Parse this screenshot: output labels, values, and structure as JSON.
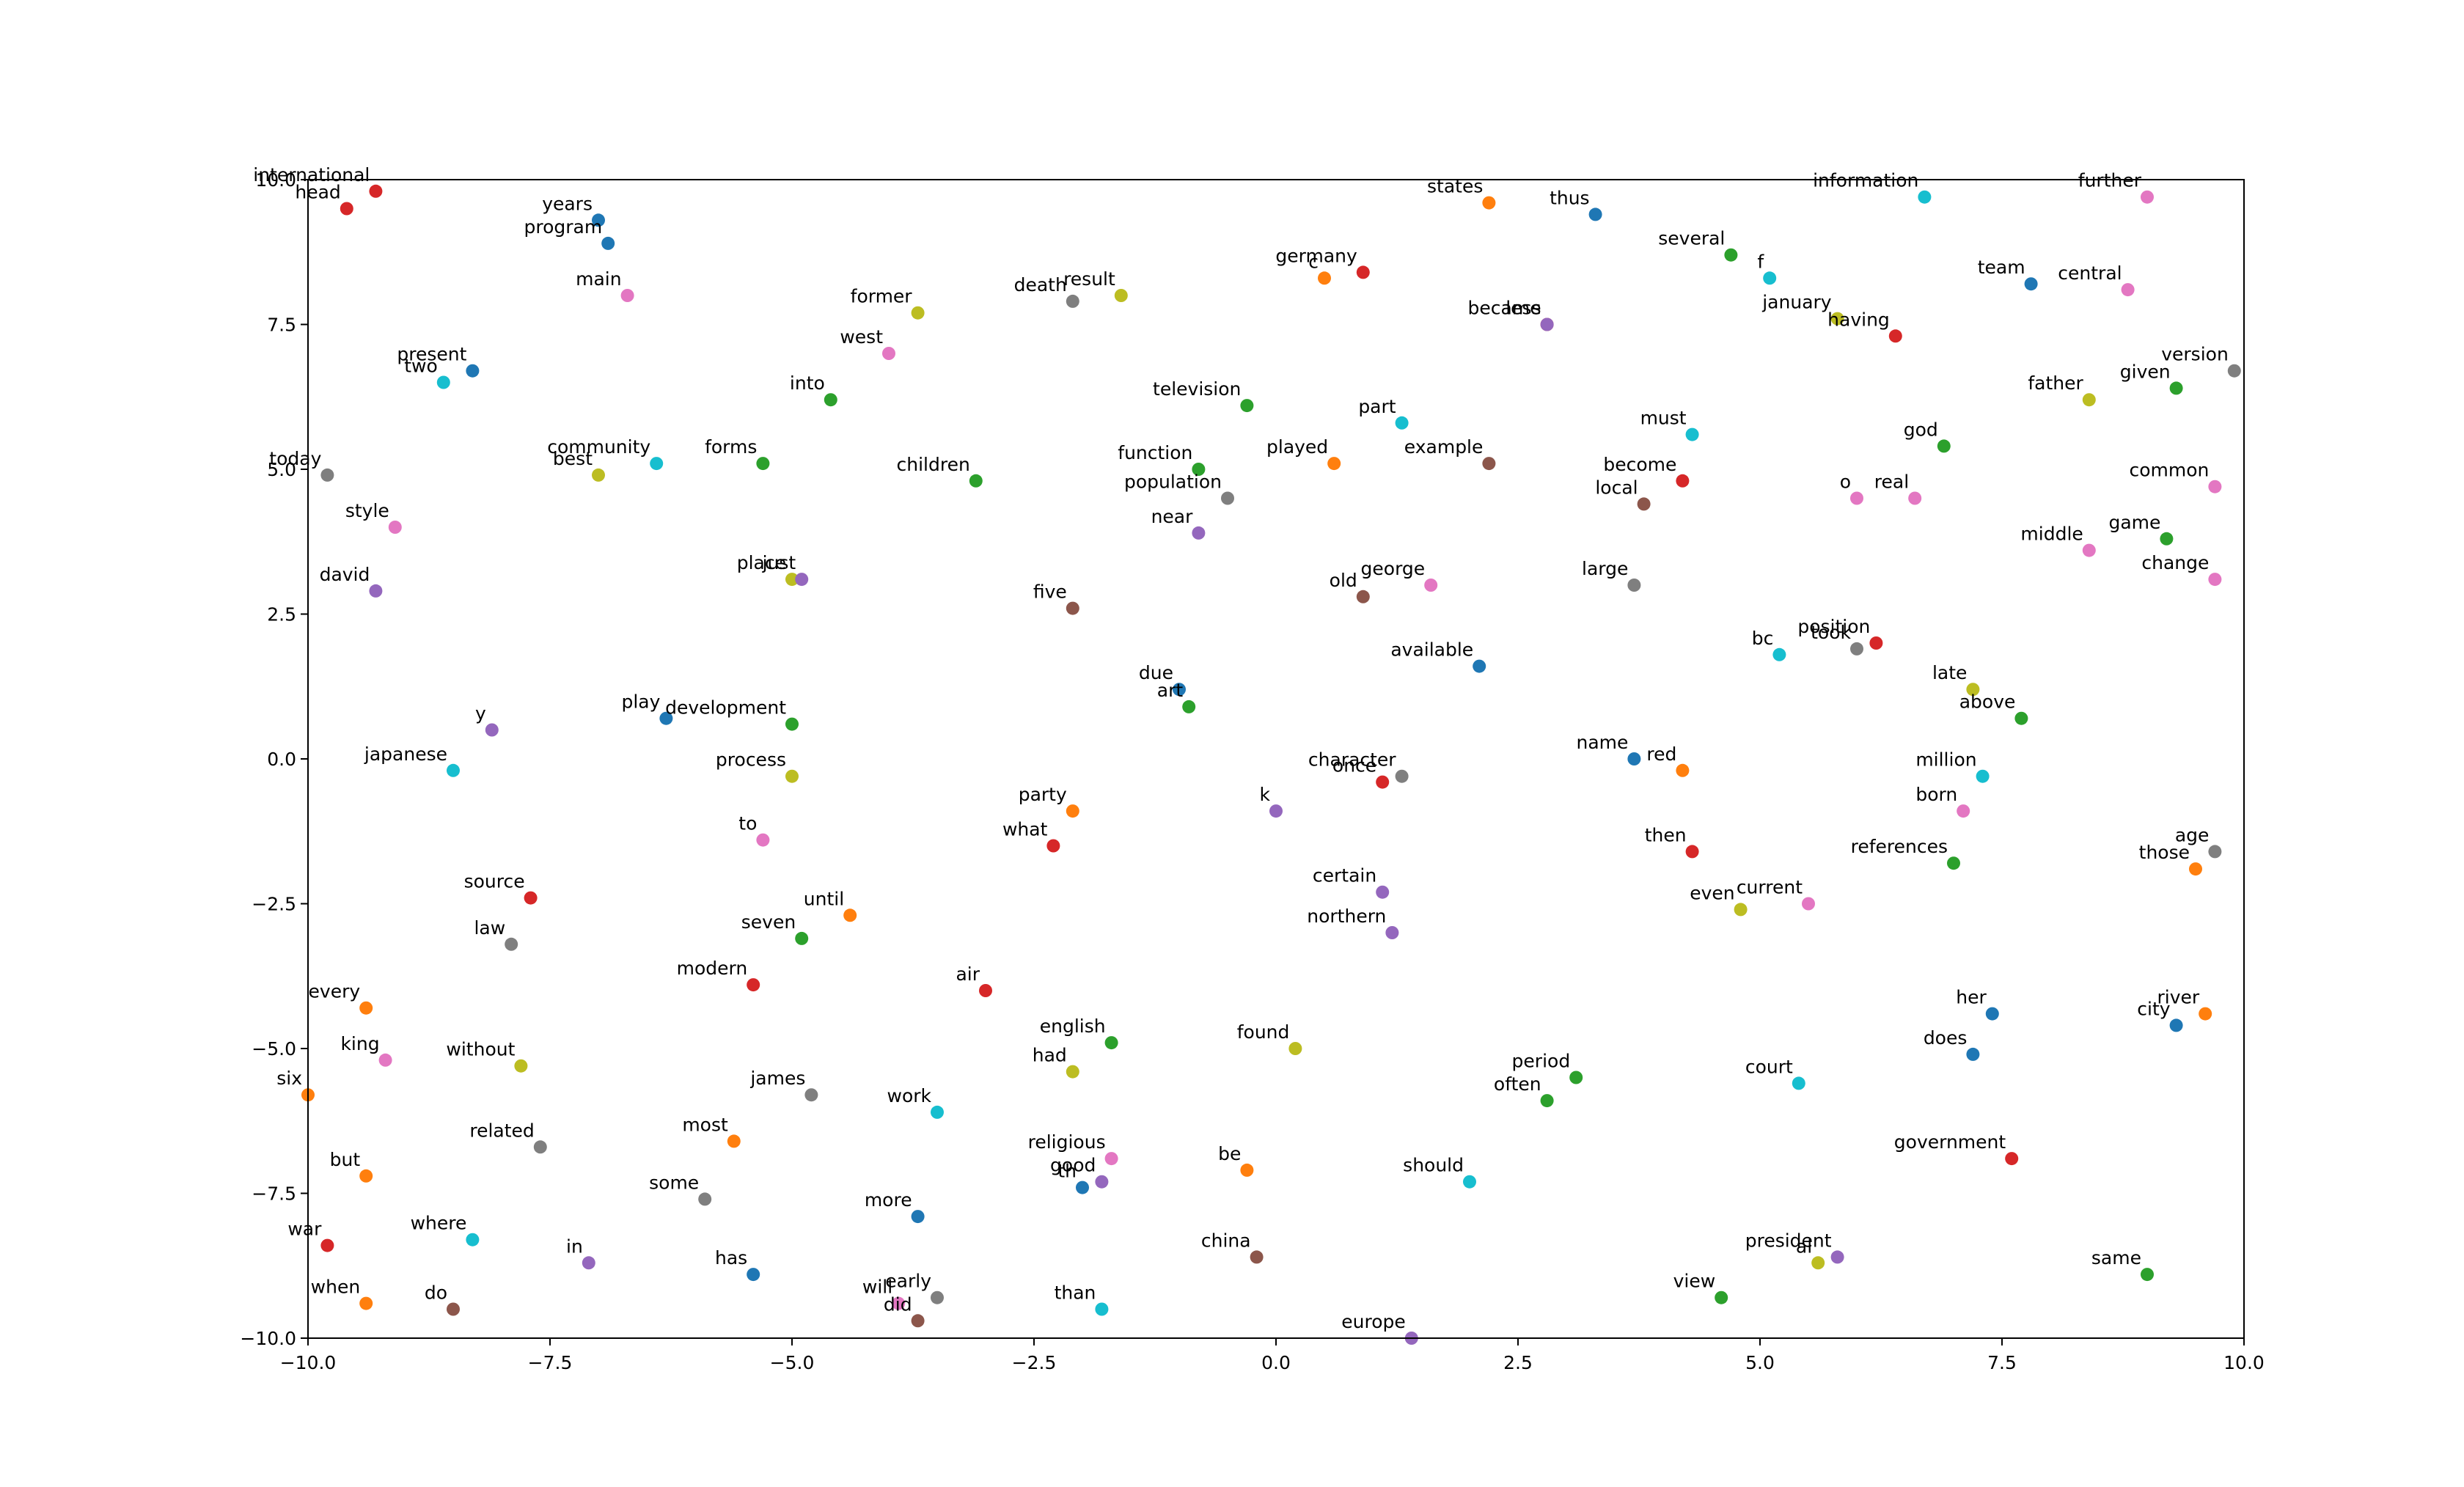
{
  "chart_data": {
    "type": "scatter",
    "title": "",
    "xlabel": "",
    "ylabel": "",
    "xlim": [
      -10,
      10
    ],
    "ylim": [
      -10,
      10
    ],
    "xticks": [
      "−10.0",
      "−7.5",
      "−5.0",
      "−2.5",
      "0.0",
      "2.5",
      "5.0",
      "7.5",
      "10.0"
    ],
    "yticks": [
      "−10.0",
      "−7.5",
      "−5.0",
      "−2.5",
      "0.0",
      "2.5",
      "5.0",
      "7.5",
      "10.0"
    ],
    "xtick_values": [
      -10,
      -7.5,
      -5,
      -2.5,
      0,
      2.5,
      5,
      7.5,
      10
    ],
    "ytick_values": [
      -10,
      -7.5,
      -5,
      -2.5,
      0,
      2.5,
      5,
      7.5,
      10
    ],
    "grid": false,
    "colors": [
      "#1f77b4",
      "#ff7f0e",
      "#2ca02c",
      "#d62728",
      "#9467bd",
      "#8c564b",
      "#e377c2",
      "#7f7f7f",
      "#bcbd22",
      "#17becf"
    ],
    "points": [
      {
        "label": "international",
        "x": -9.3,
        "y": 9.8,
        "c": 3
      },
      {
        "label": "head",
        "x": -9.6,
        "y": 9.5,
        "c": 3
      },
      {
        "label": "years",
        "x": -7.0,
        "y": 9.3,
        "c": 0
      },
      {
        "label": "program",
        "x": -6.9,
        "y": 8.9,
        "c": 0
      },
      {
        "label": "main",
        "x": -6.7,
        "y": 8.0,
        "c": 6
      },
      {
        "label": "present",
        "x": -8.3,
        "y": 6.7,
        "c": 0
      },
      {
        "label": "two",
        "x": -8.6,
        "y": 6.5,
        "c": 9
      },
      {
        "label": "today",
        "x": -9.8,
        "y": 4.9,
        "c": 7
      },
      {
        "label": "community",
        "x": -6.4,
        "y": 5.1,
        "c": 9
      },
      {
        "label": "best",
        "x": -7.0,
        "y": 4.9,
        "c": 8
      },
      {
        "label": "style",
        "x": -9.1,
        "y": 4.0,
        "c": 6
      },
      {
        "label": "forms",
        "x": -5.3,
        "y": 5.1,
        "c": 2
      },
      {
        "label": "into",
        "x": -4.6,
        "y": 6.2,
        "c": 2
      },
      {
        "label": "former",
        "x": -3.7,
        "y": 7.7,
        "c": 8
      },
      {
        "label": "west",
        "x": -4.0,
        "y": 7.0,
        "c": 6
      },
      {
        "label": "death",
        "x": -2.1,
        "y": 7.9,
        "c": 7
      },
      {
        "label": "result",
        "x": -1.6,
        "y": 8.0,
        "c": 8
      },
      {
        "label": "children",
        "x": -3.1,
        "y": 4.8,
        "c": 2
      },
      {
        "label": "david",
        "x": -9.3,
        "y": 2.9,
        "c": 4
      },
      {
        "label": "place",
        "x": -5.0,
        "y": 3.1,
        "c": 8
      },
      {
        "label": "just",
        "x": -4.9,
        "y": 3.1,
        "c": 4
      },
      {
        "label": "five",
        "x": -2.1,
        "y": 2.6,
        "c": 5
      },
      {
        "label": "y",
        "x": -8.1,
        "y": 0.5,
        "c": 4
      },
      {
        "label": "play",
        "x": -6.3,
        "y": 0.7,
        "c": 0
      },
      {
        "label": "development",
        "x": -5.0,
        "y": 0.6,
        "c": 2
      },
      {
        "label": "japanese",
        "x": -8.5,
        "y": -0.2,
        "c": 9
      },
      {
        "label": "process",
        "x": -5.0,
        "y": -0.3,
        "c": 8
      },
      {
        "label": "to",
        "x": -5.3,
        "y": -1.4,
        "c": 6
      },
      {
        "label": "party",
        "x": -2.1,
        "y": -0.9,
        "c": 1
      },
      {
        "label": "what",
        "x": -2.3,
        "y": -1.5,
        "c": 3
      },
      {
        "label": "source",
        "x": -7.7,
        "y": -2.4,
        "c": 3
      },
      {
        "label": "until",
        "x": -4.4,
        "y": -2.7,
        "c": 1
      },
      {
        "label": "seven",
        "x": -4.9,
        "y": -3.1,
        "c": 2
      },
      {
        "label": "law",
        "x": -7.9,
        "y": -3.2,
        "c": 7
      },
      {
        "label": "modern",
        "x": -5.4,
        "y": -3.9,
        "c": 3
      },
      {
        "label": "air",
        "x": -3.0,
        "y": -4.0,
        "c": 3
      },
      {
        "label": "every",
        "x": -9.4,
        "y": -4.3,
        "c": 1
      },
      {
        "label": "king",
        "x": -9.2,
        "y": -5.2,
        "c": 6
      },
      {
        "label": "without",
        "x": -7.8,
        "y": -5.3,
        "c": 8
      },
      {
        "label": "six",
        "x": -10.0,
        "y": -5.8,
        "c": 1
      },
      {
        "label": "james",
        "x": -4.8,
        "y": -5.8,
        "c": 7
      },
      {
        "label": "work",
        "x": -3.5,
        "y": -6.1,
        "c": 9
      },
      {
        "label": "english",
        "x": -1.7,
        "y": -4.9,
        "c": 2
      },
      {
        "label": "had",
        "x": -2.1,
        "y": -5.4,
        "c": 8
      },
      {
        "label": "related",
        "x": -7.6,
        "y": -6.7,
        "c": 7
      },
      {
        "label": "most",
        "x": -5.6,
        "y": -6.6,
        "c": 1
      },
      {
        "label": "but",
        "x": -9.4,
        "y": -7.2,
        "c": 1
      },
      {
        "label": "some",
        "x": -5.9,
        "y": -7.6,
        "c": 7
      },
      {
        "label": "religious",
        "x": -1.7,
        "y": -6.9,
        "c": 6
      },
      {
        "label": "good",
        "x": -1.8,
        "y": -7.3,
        "c": 4
      },
      {
        "label": "th",
        "x": -2.0,
        "y": -7.4,
        "c": 0
      },
      {
        "label": "more",
        "x": -3.7,
        "y": -7.9,
        "c": 0
      },
      {
        "label": "war",
        "x": -9.8,
        "y": -8.4,
        "c": 3
      },
      {
        "label": "where",
        "x": -8.3,
        "y": -8.3,
        "c": 9
      },
      {
        "label": "in",
        "x": -7.1,
        "y": -8.7,
        "c": 4
      },
      {
        "label": "has",
        "x": -5.4,
        "y": -8.9,
        "c": 0
      },
      {
        "label": "when",
        "x": -9.4,
        "y": -9.4,
        "c": 1
      },
      {
        "label": "do",
        "x": -8.5,
        "y": -9.5,
        "c": 5
      },
      {
        "label": "early",
        "x": -3.5,
        "y": -9.3,
        "c": 7
      },
      {
        "label": "will",
        "x": -3.9,
        "y": -9.4,
        "c": 6
      },
      {
        "label": "did",
        "x": -3.7,
        "y": -9.7,
        "c": 5
      },
      {
        "label": "than",
        "x": -1.8,
        "y": -9.5,
        "c": 9
      },
      {
        "label": "germany",
        "x": 0.9,
        "y": 8.4,
        "c": 3
      },
      {
        "label": "c",
        "x": 0.5,
        "y": 8.3,
        "c": 1
      },
      {
        "label": "states",
        "x": 2.2,
        "y": 9.6,
        "c": 1
      },
      {
        "label": "thus",
        "x": 3.3,
        "y": 9.4,
        "c": 0
      },
      {
        "label": "became",
        "x": 2.8,
        "y": 7.5,
        "c": 3
      },
      {
        "label": "less",
        "x": 2.8,
        "y": 7.5,
        "c": 4
      },
      {
        "label": "television",
        "x": -0.3,
        "y": 6.1,
        "c": 2
      },
      {
        "label": "part",
        "x": 1.3,
        "y": 5.8,
        "c": 9
      },
      {
        "label": "function",
        "x": -0.8,
        "y": 5.0,
        "c": 2
      },
      {
        "label": "played",
        "x": 0.6,
        "y": 5.1,
        "c": 1
      },
      {
        "label": "example",
        "x": 2.2,
        "y": 5.1,
        "c": 5
      },
      {
        "label": "population",
        "x": -0.5,
        "y": 4.5,
        "c": 7
      },
      {
        "label": "near",
        "x": -0.8,
        "y": 3.9,
        "c": 4
      },
      {
        "label": "george",
        "x": 1.6,
        "y": 3.0,
        "c": 6
      },
      {
        "label": "old",
        "x": 0.9,
        "y": 2.8,
        "c": 5
      },
      {
        "label": "available",
        "x": 2.1,
        "y": 1.6,
        "c": 0
      },
      {
        "label": "due",
        "x": -1.0,
        "y": 1.2,
        "c": 0
      },
      {
        "label": "art",
        "x": -0.9,
        "y": 0.9,
        "c": 2
      },
      {
        "label": "character",
        "x": 1.3,
        "y": -0.3,
        "c": 7
      },
      {
        "label": "once",
        "x": 1.1,
        "y": -0.4,
        "c": 3
      },
      {
        "label": "k",
        "x": 0.0,
        "y": -0.9,
        "c": 4
      },
      {
        "label": "certain",
        "x": 1.1,
        "y": -2.3,
        "c": 4
      },
      {
        "label": "northern",
        "x": 1.2,
        "y": -3.0,
        "c": 4
      },
      {
        "label": "found",
        "x": 0.2,
        "y": -5.0,
        "c": 8
      },
      {
        "label": "be",
        "x": -0.3,
        "y": -7.1,
        "c": 1
      },
      {
        "label": "china",
        "x": -0.2,
        "y": -8.6,
        "c": 5
      },
      {
        "label": "should",
        "x": 2.0,
        "y": -7.3,
        "c": 9
      },
      {
        "label": "europe",
        "x": 1.4,
        "y": -10.0,
        "c": 4
      },
      {
        "label": "period",
        "x": 3.1,
        "y": -5.5,
        "c": 2
      },
      {
        "label": "often",
        "x": 2.8,
        "y": -5.9,
        "c": 2
      },
      {
        "label": "information",
        "x": 6.7,
        "y": 9.7,
        "c": 9
      },
      {
        "label": "several",
        "x": 4.7,
        "y": 8.7,
        "c": 2
      },
      {
        "label": "f",
        "x": 5.1,
        "y": 8.3,
        "c": 9
      },
      {
        "label": "january",
        "x": 5.8,
        "y": 7.6,
        "c": 8
      },
      {
        "label": "having",
        "x": 6.4,
        "y": 7.3,
        "c": 3
      },
      {
        "label": "must",
        "x": 4.3,
        "y": 5.6,
        "c": 9
      },
      {
        "label": "become",
        "x": 4.2,
        "y": 4.8,
        "c": 3
      },
      {
        "label": "local",
        "x": 3.8,
        "y": 4.4,
        "c": 5
      },
      {
        "label": "god",
        "x": 6.9,
        "y": 5.4,
        "c": 2
      },
      {
        "label": "o",
        "x": 6.0,
        "y": 4.5,
        "c": 6
      },
      {
        "label": "real",
        "x": 6.6,
        "y": 4.5,
        "c": 6
      },
      {
        "label": "large",
        "x": 3.7,
        "y": 3.0,
        "c": 7
      },
      {
        "label": "position",
        "x": 6.2,
        "y": 2.0,
        "c": 3
      },
      {
        "label": "took",
        "x": 6.0,
        "y": 1.9,
        "c": 7
      },
      {
        "label": "bc",
        "x": 5.2,
        "y": 1.8,
        "c": 9
      },
      {
        "label": "name",
        "x": 3.7,
        "y": 0.0,
        "c": 0
      },
      {
        "label": "red",
        "x": 4.2,
        "y": -0.2,
        "c": 1
      },
      {
        "label": "then",
        "x": 4.3,
        "y": -1.6,
        "c": 3
      },
      {
        "label": "even",
        "x": 4.8,
        "y": -2.6,
        "c": 8
      },
      {
        "label": "current",
        "x": 5.5,
        "y": -2.5,
        "c": 6
      },
      {
        "label": "court",
        "x": 5.4,
        "y": -5.6,
        "c": 9
      },
      {
        "label": "view",
        "x": 4.6,
        "y": -9.3,
        "c": 2
      },
      {
        "label": "al",
        "x": 5.6,
        "y": -8.7,
        "c": 8
      },
      {
        "label": "president",
        "x": 5.8,
        "y": -8.6,
        "c": 4
      },
      {
        "label": "team",
        "x": 7.8,
        "y": 8.2,
        "c": 0
      },
      {
        "label": "further",
        "x": 9.0,
        "y": 9.7,
        "c": 6
      },
      {
        "label": "central",
        "x": 8.8,
        "y": 8.1,
        "c": 6
      },
      {
        "label": "father",
        "x": 8.4,
        "y": 6.2,
        "c": 8
      },
      {
        "label": "given",
        "x": 9.3,
        "y": 6.4,
        "c": 2
      },
      {
        "label": "version",
        "x": 9.9,
        "y": 6.7,
        "c": 7
      },
      {
        "label": "common",
        "x": 9.7,
        "y": 4.7,
        "c": 6
      },
      {
        "label": "middle",
        "x": 8.4,
        "y": 3.6,
        "c": 6
      },
      {
        "label": "game",
        "x": 9.2,
        "y": 3.8,
        "c": 2
      },
      {
        "label": "change",
        "x": 9.7,
        "y": 3.1,
        "c": 6
      },
      {
        "label": "late",
        "x": 7.2,
        "y": 1.2,
        "c": 8
      },
      {
        "label": "above",
        "x": 7.7,
        "y": 0.7,
        "c": 2
      },
      {
        "label": "million",
        "x": 7.3,
        "y": -0.3,
        "c": 9
      },
      {
        "label": "born",
        "x": 7.1,
        "y": -0.9,
        "c": 6
      },
      {
        "label": "references",
        "x": 7.0,
        "y": -1.8,
        "c": 2
      },
      {
        "label": "age",
        "x": 9.7,
        "y": -1.6,
        "c": 7
      },
      {
        "label": "those",
        "x": 9.5,
        "y": -1.9,
        "c": 1
      },
      {
        "label": "her",
        "x": 7.4,
        "y": -4.4,
        "c": 0
      },
      {
        "label": "does",
        "x": 7.2,
        "y": -5.1,
        "c": 0
      },
      {
        "label": "city",
        "x": 9.3,
        "y": -4.6,
        "c": 0
      },
      {
        "label": "river",
        "x": 9.6,
        "y": -4.4,
        "c": 1
      },
      {
        "label": "government",
        "x": 7.6,
        "y": -6.9,
        "c": 3
      },
      {
        "label": "same",
        "x": 9.0,
        "y": -8.9,
        "c": 2
      }
    ]
  }
}
